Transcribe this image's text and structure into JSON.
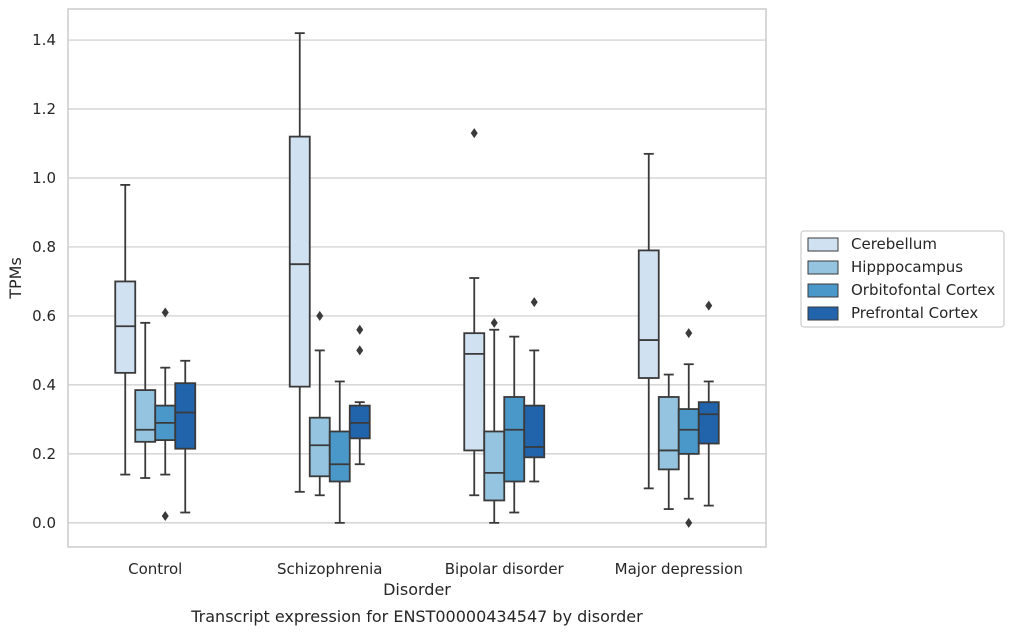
{
  "chart_data": {
    "type": "box",
    "title": "",
    "caption": "Transcript expression for ENST00000434547 by disorder",
    "xlabel": "Disorder",
    "ylabel": "TPMs",
    "ylim": [
      -0.07,
      1.49
    ],
    "yticks": [
      0.0,
      0.2,
      0.4,
      0.6,
      0.8,
      1.0,
      1.2,
      1.4
    ],
    "ytick_labels": [
      "0.0",
      "0.2",
      "0.4",
      "0.6",
      "0.8",
      "1.0",
      "1.2",
      "1.4"
    ],
    "grid": "horizontal",
    "legend_position": "right",
    "categories": [
      "Control",
      "Schizophrenia",
      "Bipolar disorder",
      "Major depression"
    ],
    "series": [
      {
        "name": "Cerebellum",
        "color": "#d0e1f2",
        "boxes": [
          {
            "whislo": 0.14,
            "q1": 0.435,
            "med": 0.57,
            "q3": 0.7,
            "whishi": 0.98,
            "fliers": []
          },
          {
            "whislo": 0.09,
            "q1": 0.395,
            "med": 0.75,
            "q3": 1.12,
            "whishi": 1.42,
            "fliers": []
          },
          {
            "whislo": 0.08,
            "q1": 0.21,
            "med": 0.49,
            "q3": 0.55,
            "whishi": 0.71,
            "fliers": [
              1.13
            ]
          },
          {
            "whislo": 0.1,
            "q1": 0.42,
            "med": 0.53,
            "q3": 0.79,
            "whishi": 1.07,
            "fliers": []
          }
        ]
      },
      {
        "name": "Hipppocampus",
        "color": "#94c4df",
        "boxes": [
          {
            "whislo": 0.13,
            "q1": 0.235,
            "med": 0.27,
            "q3": 0.385,
            "whishi": 0.58,
            "fliers": []
          },
          {
            "whislo": 0.08,
            "q1": 0.135,
            "med": 0.225,
            "q3": 0.305,
            "whishi": 0.5,
            "fliers": [
              0.6
            ]
          },
          {
            "whislo": 0.0,
            "q1": 0.065,
            "med": 0.145,
            "q3": 0.265,
            "whishi": 0.56,
            "fliers": [
              0.58
            ]
          },
          {
            "whislo": 0.04,
            "q1": 0.155,
            "med": 0.21,
            "q3": 0.365,
            "whishi": 0.43,
            "fliers": []
          }
        ]
      },
      {
        "name": "Orbitofontal Cortex",
        "color": "#4a98c9",
        "boxes": [
          {
            "whislo": 0.14,
            "q1": 0.24,
            "med": 0.29,
            "q3": 0.34,
            "whishi": 0.45,
            "fliers": [
              0.61,
              0.02
            ]
          },
          {
            "whislo": 0.0,
            "q1": 0.12,
            "med": 0.17,
            "q3": 0.265,
            "whishi": 0.41,
            "fliers": []
          },
          {
            "whislo": 0.03,
            "q1": 0.12,
            "med": 0.27,
            "q3": 0.365,
            "whishi": 0.54,
            "fliers": []
          },
          {
            "whislo": 0.07,
            "q1": 0.2,
            "med": 0.27,
            "q3": 0.33,
            "whishi": 0.46,
            "fliers": [
              0.55,
              0.0
            ]
          }
        ]
      },
      {
        "name": "Prefrontal Cortex",
        "color": "#2164ab",
        "boxes": [
          {
            "whislo": 0.03,
            "q1": 0.215,
            "med": 0.32,
            "q3": 0.405,
            "whishi": 0.47,
            "fliers": []
          },
          {
            "whislo": 0.17,
            "q1": 0.245,
            "med": 0.29,
            "q3": 0.34,
            "whishi": 0.35,
            "fliers": [
              0.56,
              0.5
            ]
          },
          {
            "whislo": 0.12,
            "q1": 0.19,
            "med": 0.22,
            "q3": 0.34,
            "whishi": 0.5,
            "fliers": [
              0.64
            ]
          },
          {
            "whislo": 0.05,
            "q1": 0.23,
            "med": 0.315,
            "q3": 0.35,
            "whishi": 0.41,
            "fliers": [
              0.63
            ]
          }
        ]
      }
    ]
  }
}
